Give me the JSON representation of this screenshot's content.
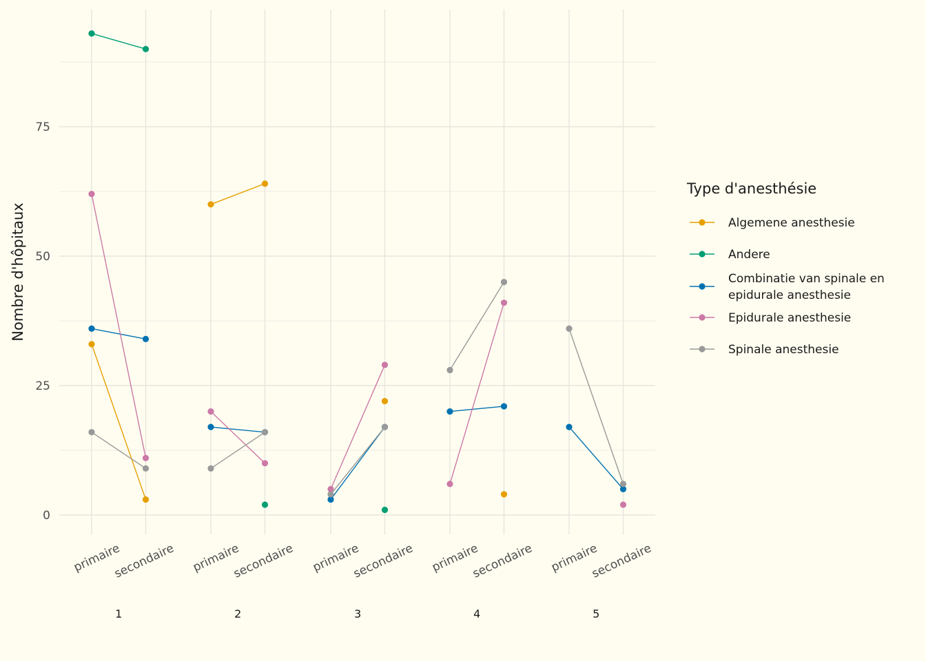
{
  "chart_data": {
    "type": "line",
    "xlabel": "",
    "ylabel": "Nombre d'hôpitaux",
    "ylim": [
      0,
      93
    ],
    "y_ticks": [
      0,
      25,
      50,
      75
    ],
    "y_minor_ticks": [
      12.5,
      37.5,
      62.5,
      87.5
    ],
    "groups": [
      "1",
      "2",
      "3",
      "4",
      "5"
    ],
    "categories": [
      "primaire",
      "secondaire"
    ],
    "grid": true,
    "legend": {
      "title": "Type d'anesthésie",
      "position": "right"
    },
    "series": [
      {
        "name": "Algemene anesthesie",
        "color": "#E69F00",
        "values": [
          [
            33,
            3
          ],
          [
            60,
            64
          ],
          [
            null,
            22
          ],
          [
            null,
            4
          ],
          [
            null,
            null
          ]
        ]
      },
      {
        "name": "Andere",
        "color": "#009E73",
        "values": [
          [
            93,
            90
          ],
          [
            null,
            2
          ],
          [
            null,
            1
          ],
          [
            null,
            null
          ],
          [
            null,
            null
          ]
        ]
      },
      {
        "name": "Combinatie van spinale en epidurale anesthesie",
        "legend_lines": [
          "Combinatie van spinale en",
          "epidurale anesthesie"
        ],
        "color": "#0072B2",
        "values": [
          [
            36,
            34
          ],
          [
            17,
            16
          ],
          [
            3,
            17
          ],
          [
            20,
            21
          ],
          [
            17,
            5
          ]
        ]
      },
      {
        "name": "Epidurale anesthesie",
        "color": "#CC79A7",
        "values": [
          [
            62,
            11
          ],
          [
            20,
            10
          ],
          [
            5,
            29
          ],
          [
            6,
            41
          ],
          [
            null,
            2
          ]
        ]
      },
      {
        "name": "Spinale anesthesie",
        "color": "#999999",
        "values": [
          [
            16,
            9
          ],
          [
            9,
            16
          ],
          [
            4,
            17
          ],
          [
            28,
            45
          ],
          [
            36,
            6
          ]
        ]
      }
    ]
  }
}
